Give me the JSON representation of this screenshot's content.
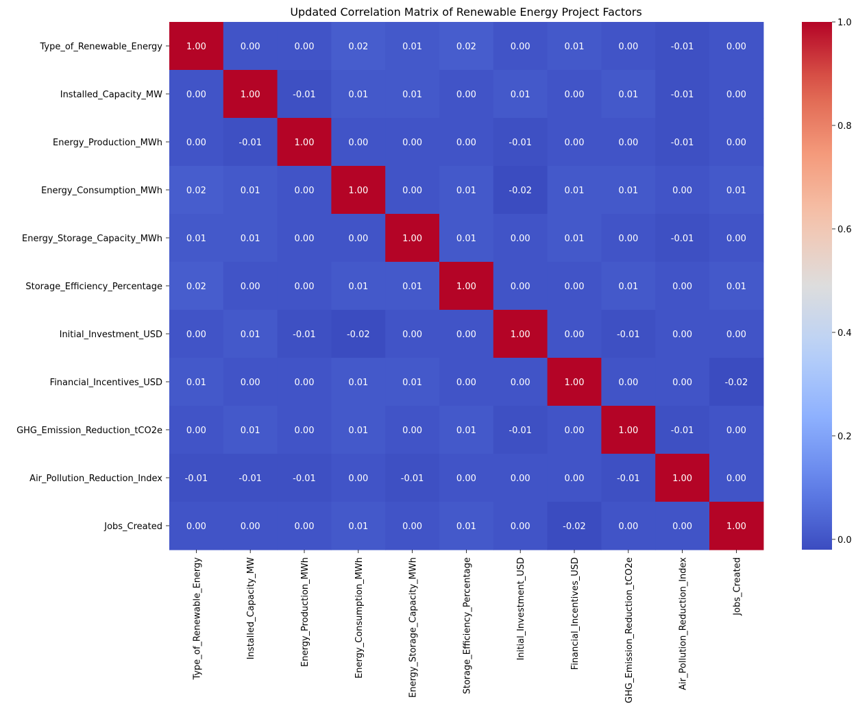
{
  "chart_data": {
    "type": "heatmap",
    "title": "Updated Correlation Matrix of Renewable Energy Project Factors",
    "row_labels": [
      "Type_of_Renewable_Energy",
      "Installed_Capacity_MW",
      "Energy_Production_MWh",
      "Energy_Consumption_MWh",
      "Energy_Storage_Capacity_MWh",
      "Storage_Efficiency_Percentage",
      "Initial_Investment_USD",
      "Financial_Incentives_USD",
      "GHG_Emission_Reduction_tCO2e",
      "Air_Pollution_Reduction_Index",
      "Jobs_Created"
    ],
    "col_labels": [
      "Type_of_Renewable_Energy",
      "Installed_Capacity_MW",
      "Energy_Production_MWh",
      "Energy_Consumption_MWh",
      "Energy_Storage_Capacity_MWh",
      "Storage_Efficiency_Percentage",
      "Initial_Investment_USD",
      "Financial_Incentives_USD",
      "GHG_Emission_Reduction_tCO2e",
      "Air_Pollution_Reduction_Index",
      "Jobs_Created"
    ],
    "values": [
      [
        1.0,
        -0.0,
        -0.0,
        0.02,
        0.01,
        0.02,
        -0.0,
        0.01,
        -0.0,
        -0.01,
        -0.0
      ],
      [
        -0.0,
        1.0,
        -0.01,
        0.01,
        0.01,
        0.0,
        0.01,
        0.0,
        0.01,
        -0.01,
        -0.0
      ],
      [
        -0.0,
        -0.01,
        1.0,
        -0.0,
        -0.0,
        0.0,
        -0.01,
        0.0,
        -0.0,
        -0.01,
        -0.0
      ],
      [
        0.02,
        0.01,
        -0.0,
        1.0,
        -0.0,
        0.01,
        -0.02,
        0.01,
        0.01,
        0.0,
        0.01
      ],
      [
        0.01,
        0.01,
        -0.0,
        -0.0,
        1.0,
        0.01,
        0.0,
        0.01,
        -0.0,
        -0.01,
        0.0
      ],
      [
        0.02,
        0.0,
        0.0,
        0.01,
        0.01,
        1.0,
        0.0,
        0.0,
        0.01,
        0.0,
        0.01
      ],
      [
        -0.0,
        0.01,
        -0.01,
        -0.02,
        0.0,
        0.0,
        1.0,
        0.0,
        -0.01,
        -0.0,
        -0.0
      ],
      [
        0.01,
        0.0,
        0.0,
        0.01,
        0.01,
        0.0,
        0.0,
        1.0,
        0.0,
        -0.0,
        -0.02
      ],
      [
        -0.0,
        0.01,
        -0.0,
        0.01,
        -0.0,
        0.01,
        -0.01,
        0.0,
        1.0,
        -0.01,
        0.0
      ],
      [
        -0.01,
        -0.01,
        -0.01,
        0.0,
        -0.01,
        0.0,
        -0.0,
        -0.0,
        -0.01,
        1.0,
        0.0
      ],
      [
        -0.0,
        -0.0,
        -0.0,
        0.01,
        0.0,
        0.01,
        -0.0,
        -0.02,
        0.0,
        0.0,
        1.0
      ]
    ],
    "value_format": "0.00",
    "colormap": "coolwarm",
    "vmin": -0.02,
    "vmax": 1.0,
    "colorbar_ticks": [
      "0.0",
      "0.2",
      "0.4",
      "0.6",
      "0.8",
      "1.0"
    ],
    "colors": {
      "low": "#3b4cc0",
      "high": "#b40426"
    }
  }
}
